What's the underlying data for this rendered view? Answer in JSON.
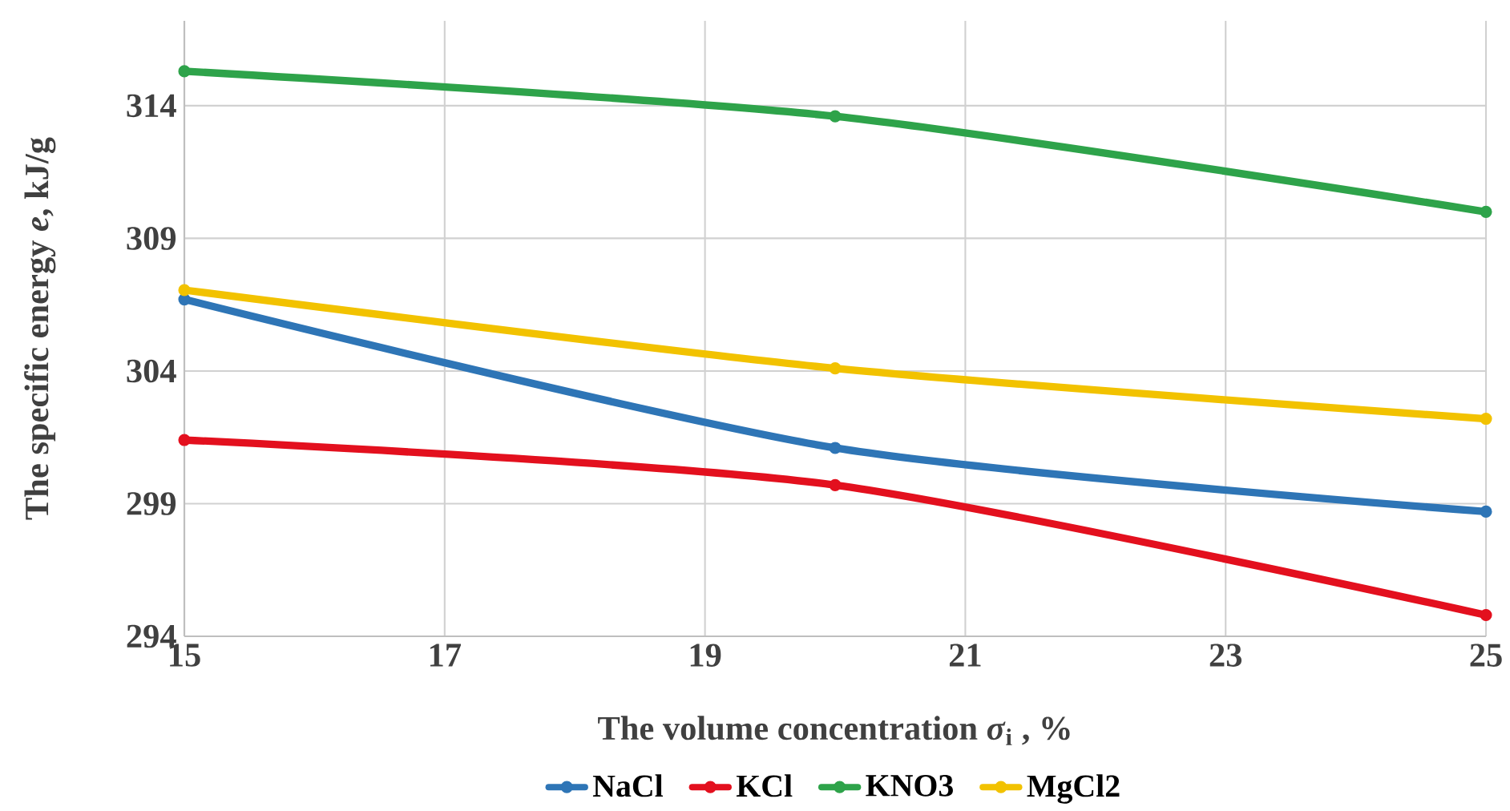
{
  "chart_data": {
    "type": "line",
    "xlabel": "The volume concentration *σ*$_{i}$ , %",
    "ylabel": "The specific energy *e*, kJ/g",
    "x": [
      15,
      20,
      25
    ],
    "series": [
      {
        "name": "NaCl",
        "color": "#2e75b6",
        "values": [
          306.7,
          301.1,
          298.7
        ]
      },
      {
        "name": "KCl",
        "color": "#e3101e",
        "values": [
          301.4,
          299.7,
          294.8
        ]
      },
      {
        "name": "KNO3",
        "color": "#2ea34a",
        "values": [
          315.3,
          313.6,
          310.0
        ]
      },
      {
        "name": "MgCl2",
        "color": "#f2c200",
        "values": [
          307.05,
          304.1,
          302.2
        ]
      }
    ],
    "xlim": [
      15,
      25
    ],
    "xticks": [
      15,
      17,
      19,
      21,
      23,
      25
    ],
    "ylim": [
      294,
      317.2
    ],
    "yticks": [
      294,
      299,
      304,
      309,
      314
    ],
    "grid": true,
    "legend": "bottom",
    "marker": "circle",
    "line_style": "solid"
  }
}
